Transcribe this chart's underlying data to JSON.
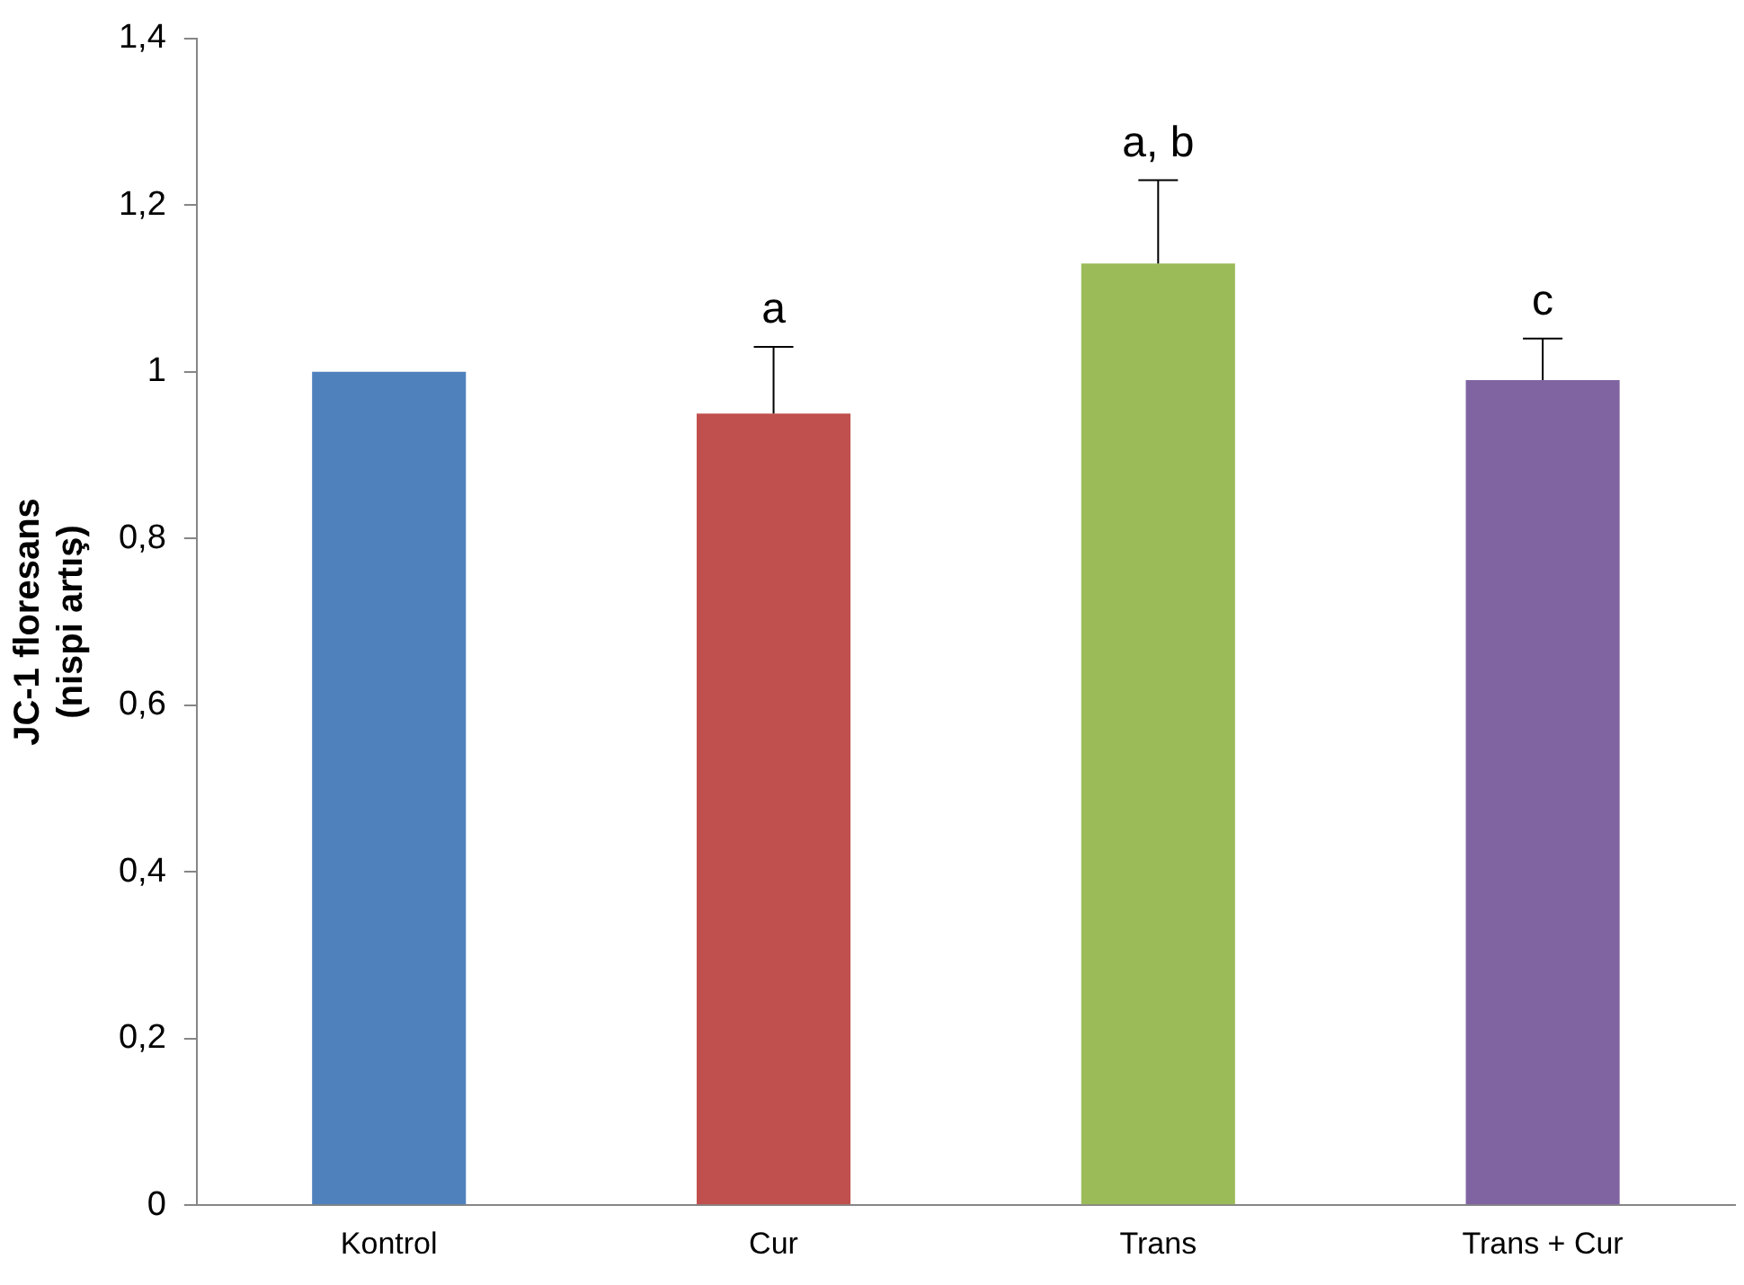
{
  "chart_data": {
    "type": "bar",
    "ylabel": "JC-1 floresans\n(nispi artış)",
    "categories": [
      "Kontrol",
      "Cur",
      "Trans",
      "Trans + Cur"
    ],
    "values": [
      1,
      0.95,
      1.13,
      0.99
    ],
    "colors": [
      "#4f81bd",
      "#c0504d",
      "#9bbb59",
      "#8064a2"
    ],
    "errors": [
      null,
      [
        0.95,
        1.03
      ],
      [
        1.13,
        1.23
      ],
      [
        0.99,
        1.04
      ]
    ],
    "ylim": [
      0,
      1.4
    ],
    "yticks": [
      0,
      {
        "value": 0.2,
        "label": "0,2"
      },
      {
        "value": 0.4,
        "label": "0,4"
      },
      {
        "value": 0.6,
        "label": "0,6"
      },
      {
        "value": 0.8,
        "label": "0,8"
      },
      1,
      {
        "value": 1.2,
        "label": "1,2"
      },
      {
        "value": 1.4,
        "label": "1,4"
      }
    ],
    "annotations": [
      {
        "text": "a",
        "x": "Cur",
        "y": 1.03
      },
      {
        "text": "a, b",
        "x": "Trans",
        "y": 1.23
      },
      {
        "text": "c",
        "x": "Trans + Cur",
        "y": 1.04
      }
    ],
    "grid": false,
    "legend": false
  }
}
